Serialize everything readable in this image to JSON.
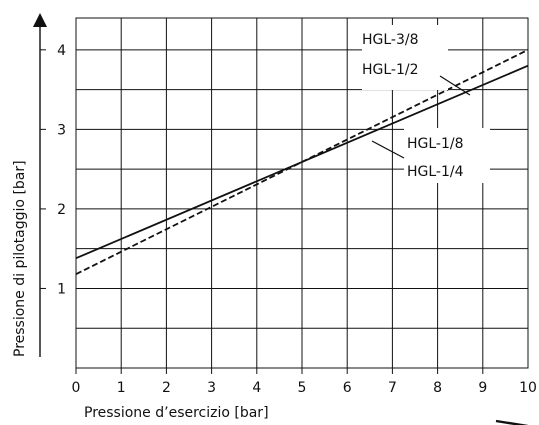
{
  "chart_data": {
    "type": "line",
    "xlabel": "Pressione d’esercizio [bar]",
    "ylabel": "Pressione di pilotaggio [bar]",
    "xlim": [
      0,
      10
    ],
    "ylim": [
      0,
      4.4
    ],
    "x_ticks": [
      0,
      1,
      2,
      3,
      4,
      5,
      6,
      7,
      8,
      9,
      10
    ],
    "x_tick_labels": [
      "0",
      "1",
      "2",
      "3",
      "4",
      "5",
      "6",
      "7",
      "8",
      "9",
      "10"
    ],
    "y_ticks": [
      1,
      2,
      3,
      4
    ],
    "y_tick_labels": [
      "1",
      "2",
      "3",
      "4"
    ],
    "y_gridlines": [
      0.5,
      1,
      1.5,
      2,
      2.5,
      3,
      3.5,
      4
    ],
    "grid": true,
    "series": [
      {
        "name": "HGL-1/8, HGL-1/4",
        "labels": [
          "HGL-1/8",
          "HGL-1/4"
        ],
        "style": "solid",
        "x": [
          0,
          10
        ],
        "y": [
          1.38,
          3.8
        ]
      },
      {
        "name": "HGL-3/8, HGL-1/2",
        "labels": [
          "HGL-3/8",
          "HGL-1/2"
        ],
        "style": "dashed",
        "x": [
          0,
          10
        ],
        "y": [
          1.18,
          4.0
        ]
      }
    ],
    "colors": {
      "line": "#111111",
      "grid": "#111111"
    }
  }
}
